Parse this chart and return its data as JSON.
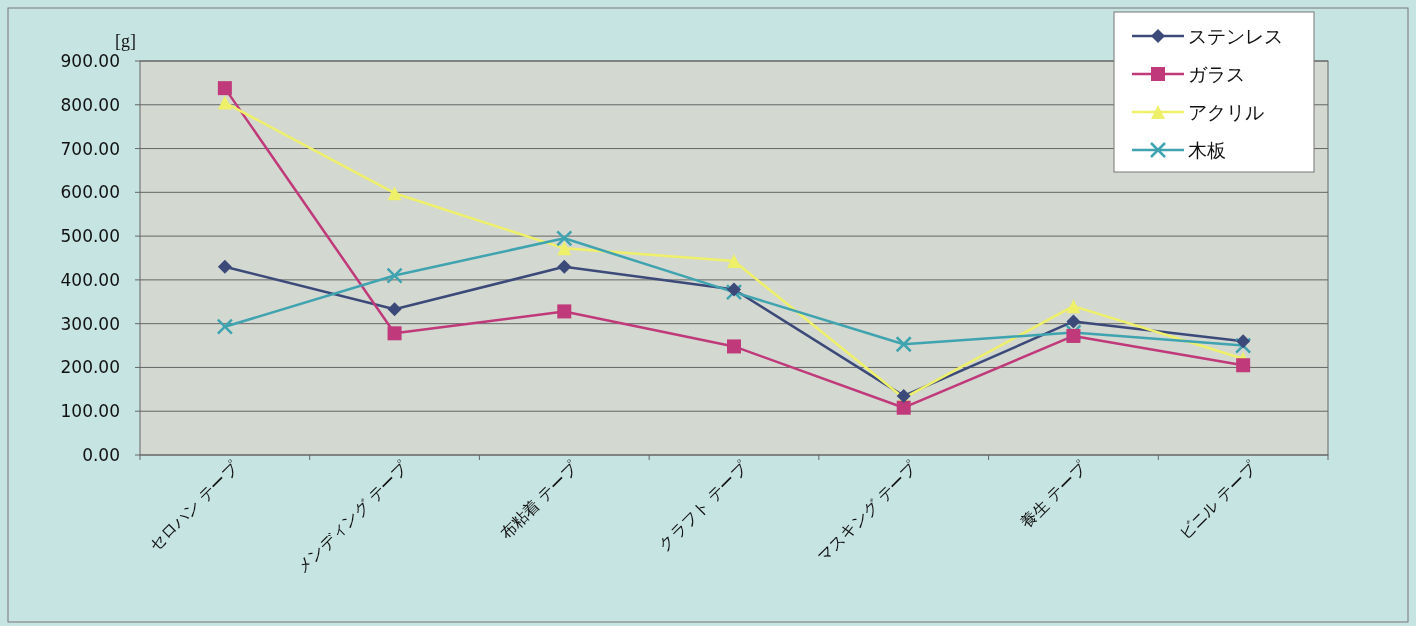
{
  "chart_data": {
    "type": "line",
    "ylabel": "[g]",
    "categories": [
      "セロハン テープ",
      "メンディング テープ",
      "布粘着 テープ",
      "クラフト テープ",
      "マスキング テープ",
      "養生 テープ",
      "ビニル テープ"
    ],
    "series": [
      {
        "name": "ステンレス",
        "color": "#3c4a7a",
        "marker": "diamond",
        "values": [
          430,
          333,
          430,
          378,
          135,
          305,
          260
        ]
      },
      {
        "name": "ガラス",
        "color": "#c0397a",
        "marker": "square",
        "values": [
          838,
          278,
          328,
          248,
          108,
          272,
          205
        ]
      },
      {
        "name": "アクリル",
        "color": "#eef06a",
        "marker": "triangle",
        "values": [
          805,
          598,
          472,
          443,
          130,
          340,
          220
        ]
      },
      {
        "name": "木板",
        "color": "#3fa3b0",
        "marker": "cross",
        "values": [
          293,
          410,
          495,
          372,
          253,
          280,
          250
        ]
      }
    ],
    "ylim": [
      0,
      900
    ],
    "yticks": [
      {
        "value": 0,
        "label": "0.00"
      },
      {
        "value": 100,
        "label": "100.00"
      },
      {
        "value": 200,
        "label": "200.00"
      },
      {
        "value": 300,
        "label": "300.00"
      },
      {
        "value": 400,
        "label": "400.00"
      },
      {
        "value": 500,
        "label": "500.00"
      },
      {
        "value": 600,
        "label": "600.00"
      },
      {
        "value": 700,
        "label": "700.00"
      },
      {
        "value": 800,
        "label": "800.00"
      },
      {
        "value": 900,
        "label": "900.00"
      }
    ],
    "grid": "y",
    "legend": "top right"
  }
}
